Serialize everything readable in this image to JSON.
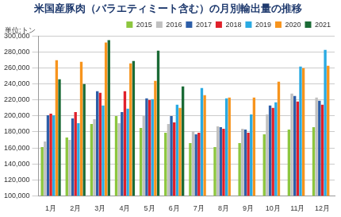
{
  "chart_data": {
    "type": "bar",
    "title": "米国産豚肉（バラエティミート含む）の月別輸出量の推移",
    "annotation": "単位:トン",
    "categories": [
      "1月",
      "2月",
      "3月",
      "4月",
      "5月",
      "6月",
      "7月",
      "8月",
      "9月",
      "10月",
      "11月",
      "12月"
    ],
    "series": [
      {
        "name": "2015",
        "color": "#8dc63f",
        "values": [
          161000,
          173000,
          190000,
          200000,
          185000,
          179000,
          166000,
          161000,
          166000,
          177000,
          183000,
          186000
        ]
      },
      {
        "name": "2016",
        "color": "#c0c0c0",
        "values": [
          168000,
          170000,
          196000,
          191000,
          200000,
          190000,
          181000,
          187000,
          184000,
          202000,
          228000,
          223000
        ]
      },
      {
        "name": "2017",
        "color": "#2d5ea8",
        "values": [
          201000,
          197000,
          231000,
          205000,
          222000,
          200000,
          177000,
          186000,
          183000,
          213000,
          225000,
          219000
        ]
      },
      {
        "name": "2018",
        "color": "#e0202a",
        "values": [
          203000,
          205000,
          229000,
          231000,
          220000,
          192000,
          179000,
          184000,
          179000,
          210000,
          218000,
          214000
        ]
      },
      {
        "name": "2019",
        "color": "#2aaae2",
        "values": [
          201000,
          191000,
          213000,
          209000,
          221000,
          214000,
          235000,
          222000,
          202000,
          217000,
          262000,
          283000
        ]
      },
      {
        "name": "2020",
        "color": "#f7941d",
        "values": [
          270000,
          268000,
          292000,
          266000,
          244000,
          210000,
          226000,
          223000,
          223000,
          243000,
          260000,
          263000
        ]
      },
      {
        "name": "2021",
        "color": "#1b6b36",
        "values": [
          246000,
          240000,
          295000,
          269000,
          282000,
          237000,
          null,
          null,
          null,
          null,
          null,
          null
        ]
      }
    ],
    "ylim": [
      100000,
      300000
    ],
    "yticks": [
      {
        "value": 100000,
        "label": "100,000"
      },
      {
        "value": 120000,
        "label": "120,000"
      },
      {
        "value": 140000,
        "label": "140,000"
      },
      {
        "value": 160000,
        "label": "160,000"
      },
      {
        "value": 180000,
        "label": "180,000"
      },
      {
        "value": 200000,
        "label": "200,000"
      },
      {
        "value": 220000,
        "label": "220,000"
      },
      {
        "value": 240000,
        "label": "240,000"
      },
      {
        "value": 260000,
        "label": "260,000"
      },
      {
        "value": 280000,
        "label": "280,000"
      },
      {
        "value": 300000,
        "label": "300,000"
      }
    ],
    "grid": true,
    "legend": "top-right"
  }
}
